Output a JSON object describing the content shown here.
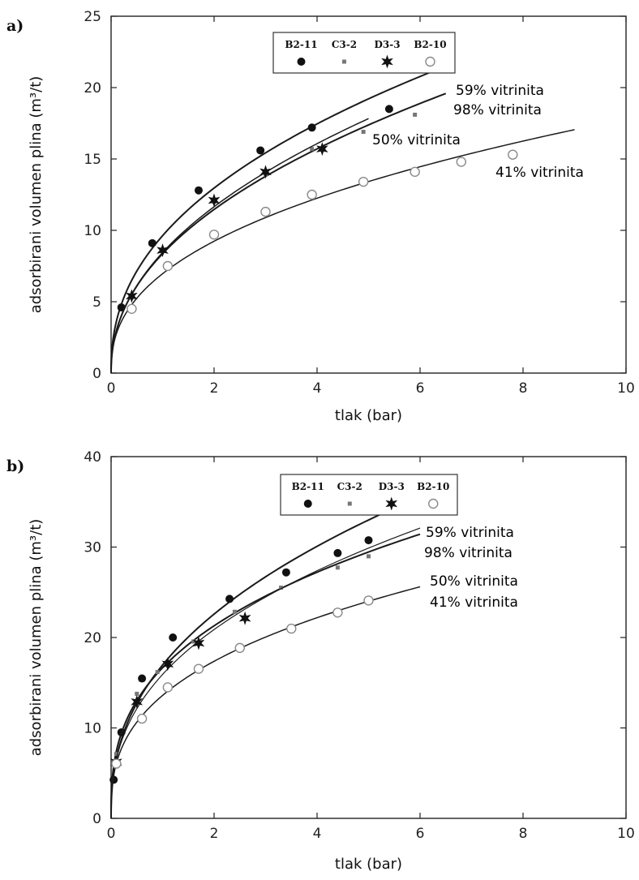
{
  "chart_data": [
    {
      "type": "line",
      "panel_label": "a)",
      "xlabel": "tlak (bar)",
      "ylabel": "adsorbirani volumen plina (m³/t)",
      "xlim": [
        0,
        10
      ],
      "ylim": [
        0,
        25
      ],
      "xticks": [
        "0",
        "2",
        "4",
        "6",
        "8",
        "10"
      ],
      "yticks": [
        "0",
        "5",
        "10",
        "15",
        "20",
        "25"
      ],
      "grid": false,
      "legend": {
        "placement": "top-center",
        "entries": [
          {
            "name": "B2-11",
            "marker": "filled-circle"
          },
          {
            "name": "C3-2",
            "marker": "small-square"
          },
          {
            "name": "D3-3",
            "marker": "star"
          },
          {
            "name": "B2-10",
            "marker": "open-circle"
          }
        ]
      },
      "series": [
        {
          "name": "B2-11",
          "annotation": "59% vitrinita",
          "marker": "filled-circle",
          "curve": {
            "a": 27.0,
            "b": 0.0022,
            "xmax": 6.5
          },
          "points": [
            [
              0.2,
              4.6
            ],
            [
              0.8,
              9.1
            ],
            [
              1.7,
              12.8
            ],
            [
              2.9,
              15.6
            ],
            [
              3.9,
              17.2
            ],
            [
              5.4,
              18.5
            ]
          ]
        },
        {
          "name": "C3-2",
          "annotation": "98% vitrinita",
          "marker": "small-square",
          "curve": {
            "a": 30.0,
            "b": 0.0035,
            "xmax": 6.5
          },
          "points": [
            [
              0.4,
              5.3
            ],
            [
              1.0,
              8.6
            ],
            [
              2.0,
              12.0
            ],
            [
              3.0,
              13.9
            ],
            [
              3.9,
              15.7
            ],
            [
              4.9,
              16.9
            ],
            [
              5.9,
              18.1
            ]
          ]
        },
        {
          "name": "D3-3",
          "annotation": "50% vitrinita",
          "marker": "star",
          "curve": {
            "a": 29.4,
            "b": 0.0038,
            "xmax": 5.0
          },
          "points": [
            [
              0.4,
              5.4
            ],
            [
              1.0,
              8.6
            ],
            [
              2.0,
              12.1
            ],
            [
              3.0,
              14.1
            ],
            [
              4.1,
              15.7
            ]
          ]
        },
        {
          "name": "B2-10",
          "annotation": "41% vitrinita",
          "marker": "open-circle",
          "curve": {
            "a": 23.0,
            "b": 0.004,
            "xmax": 9.0
          },
          "points": [
            [
              0.4,
              4.5
            ],
            [
              1.1,
              7.5
            ],
            [
              2.0,
              9.7
            ],
            [
              3.0,
              11.3
            ],
            [
              3.9,
              12.5
            ],
            [
              4.9,
              13.4
            ],
            [
              5.9,
              14.1
            ],
            [
              6.8,
              14.8
            ],
            [
              7.8,
              15.3
            ]
          ]
        }
      ]
    },
    {
      "type": "line",
      "panel_label": "b)",
      "xlabel": "tlak (bar)",
      "ylabel": "adsorbirani volumen plina (m³/t)",
      "xlim": [
        0,
        10
      ],
      "ylim": [
        0,
        45
      ],
      "xticks": [
        "0",
        "2",
        "4",
        "6",
        "8",
        "10"
      ],
      "yticks": [
        "0",
        "10",
        "20",
        "30",
        "40"
      ],
      "grid": false,
      "legend": {
        "placement": "top-center",
        "entries": [
          {
            "name": "B2-11",
            "marker": "filled-circle"
          },
          {
            "name": "C3-2",
            "marker": "small-square"
          },
          {
            "name": "D3-3",
            "marker": "star"
          },
          {
            "name": "B2-10",
            "marker": "open-circle"
          }
        ]
      },
      "series": [
        {
          "name": "B2-11",
          "annotation": "59% vitrinita",
          "marker": "filled-circle",
          "curve": {
            "a": 54.0,
            "b": 0.0017,
            "xmax": 6.0
          },
          "points": [
            [
              0.05,
              4.8
            ],
            [
              0.2,
              10.7
            ],
            [
              0.6,
              17.4
            ],
            [
              1.2,
              22.5
            ],
            [
              2.3,
              27.3
            ],
            [
              3.4,
              30.6
            ],
            [
              4.4,
              33.0
            ],
            [
              5.0,
              34.6
            ]
          ]
        },
        {
          "name": "C3-2",
          "annotation": "98% vitrinita",
          "marker": "small-square",
          "curve": {
            "a": 52.5,
            "b": 0.00205,
            "xmax": 6.0
          },
          "points": [
            [
              0.1,
              8.0
            ],
            [
              0.5,
              15.5
            ],
            [
              0.9,
              18.2
            ],
            [
              1.6,
              22.0
            ],
            [
              2.4,
              25.7
            ],
            [
              3.3,
              28.7
            ],
            [
              4.4,
              31.2
            ],
            [
              5.0,
              32.6
            ]
          ]
        },
        {
          "name": "D3-3",
          "annotation": "50% vitrinita",
          "marker": "star",
          "curve": {
            "a": 42.0,
            "b": 0.00171,
            "xmax": 6.0
          },
          "points": [
            [
              0.1,
              7.0
            ],
            [
              0.5,
              14.5
            ],
            [
              1.1,
              19.2
            ],
            [
              1.7,
              21.8
            ],
            [
              2.6,
              24.9
            ]
          ]
        },
        {
          "name": "B2-10",
          "annotation": "41% vitrinita",
          "marker": "open-circle",
          "curve": {
            "a": 46.0,
            "b": 0.00279,
            "xmax": 6.0
          },
          "points": [
            [
              0.1,
              6.8
            ],
            [
              0.6,
              12.4
            ],
            [
              1.1,
              16.3
            ],
            [
              1.7,
              18.6
            ],
            [
              2.5,
              21.2
            ],
            [
              3.5,
              23.6
            ],
            [
              4.4,
              25.6
            ],
            [
              5.0,
              27.1
            ]
          ]
        }
      ]
    }
  ]
}
